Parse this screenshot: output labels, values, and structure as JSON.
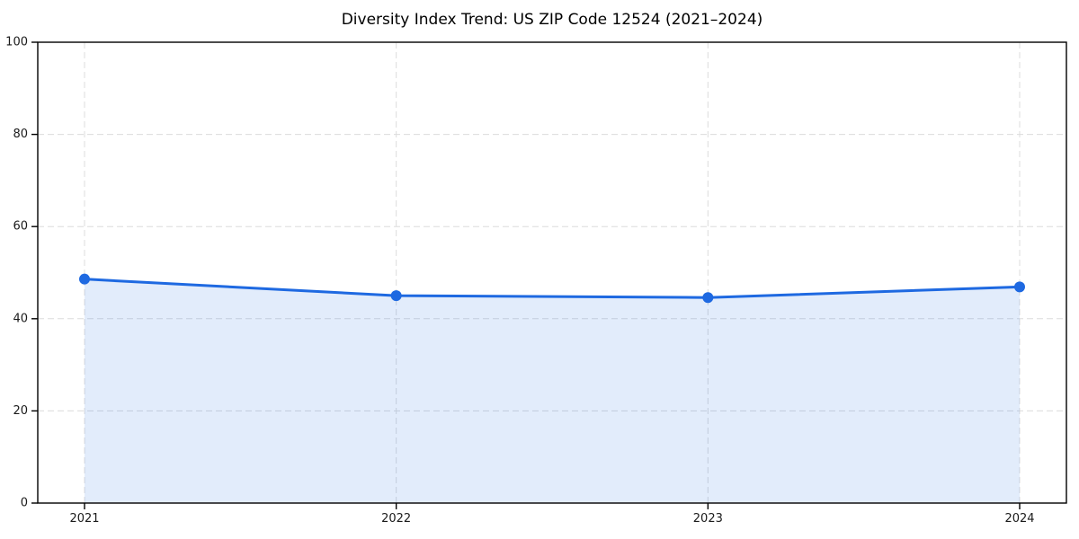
{
  "chart_data": {
    "type": "line",
    "title": "Diversity Index Trend: US ZIP Code 12524 (2021–2024)",
    "x": [
      2021,
      2022,
      2023,
      2024
    ],
    "series": [
      {
        "name": "Diversity Index",
        "values": [
          48.6,
          45.0,
          44.6,
          46.9
        ]
      }
    ],
    "xlabel": "",
    "ylabel": "",
    "ylim": [
      0,
      100
    ],
    "yticks": [
      0,
      20,
      40,
      60,
      80,
      100
    ],
    "xticks": [
      "2021",
      "2022",
      "2023",
      "2024"
    ],
    "grid": "dashed",
    "legend_position": "none",
    "area_fill": true,
    "marker": "circle",
    "colors": {
      "line": "#1e69e1",
      "marker": "#1e69e1",
      "fill_rgba": "rgba(30,105,225,0.13)",
      "grid": "#dcdcdc",
      "spine": "#000000",
      "tick_label": "#1a1a1a",
      "title": "#000000",
      "background": "#ffffff"
    }
  }
}
